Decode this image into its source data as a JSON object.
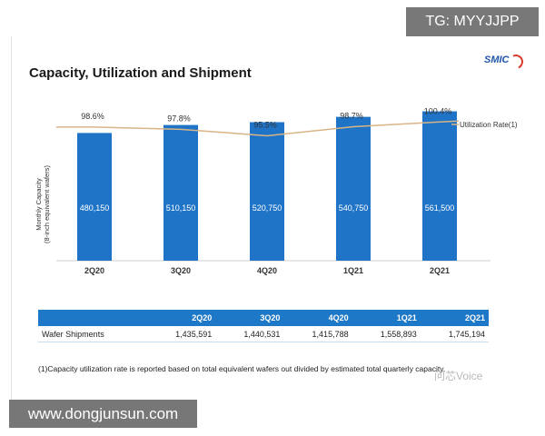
{
  "overlay": {
    "tg_label": "TG: MYYJJPP",
    "site_label": "www.dongjunsun.com"
  },
  "slide": {
    "title": "Capacity, Utilization and Shipment",
    "logo_text": "SMIC",
    "footnote": "(1)Capacity utilization rate is reported based on total equivalent wafers out divided by estimated total quarterly capacity.",
    "watermark": "问芯Voice"
  },
  "chart_data": {
    "type": "bar",
    "categories": [
      "2Q20",
      "3Q20",
      "4Q20",
      "1Q21",
      "2Q21"
    ],
    "series": [
      {
        "name": "Monthly Capacity",
        "kind": "bar",
        "values": [
          480150,
          510150,
          520750,
          540750,
          561500
        ],
        "labels": [
          "480,150",
          "510,150",
          "520,750",
          "540,750",
          "561,500"
        ]
      },
      {
        "name": "Utilization Rate(1)",
        "kind": "line",
        "values": [
          98.6,
          97.8,
          95.5,
          98.7,
          100.4
        ],
        "labels": [
          "98.6%",
          "97.8%",
          "95.5%",
          "98.7%",
          "100.4%"
        ]
      }
    ],
    "ylabel_line1": "Monthly Capacity",
    "ylabel_line2": "(8-inch equivalent wafers)",
    "legend": "Utilization Rate(1)",
    "legend_position": "top-right",
    "ylim": [
      0,
      700000
    ],
    "line_ylim": [
      85,
      105
    ],
    "colors": {
      "bar": "#1f74c8",
      "line": "#d9b487",
      "text": "#333333"
    }
  },
  "table": {
    "header": [
      "",
      "2Q20",
      "3Q20",
      "4Q20",
      "1Q21",
      "2Q21"
    ],
    "rows": [
      [
        "Wafer Shipments",
        "1,435,591",
        "1,440,531",
        "1,415,788",
        "1,558,893",
        "1,745,194"
      ]
    ]
  }
}
